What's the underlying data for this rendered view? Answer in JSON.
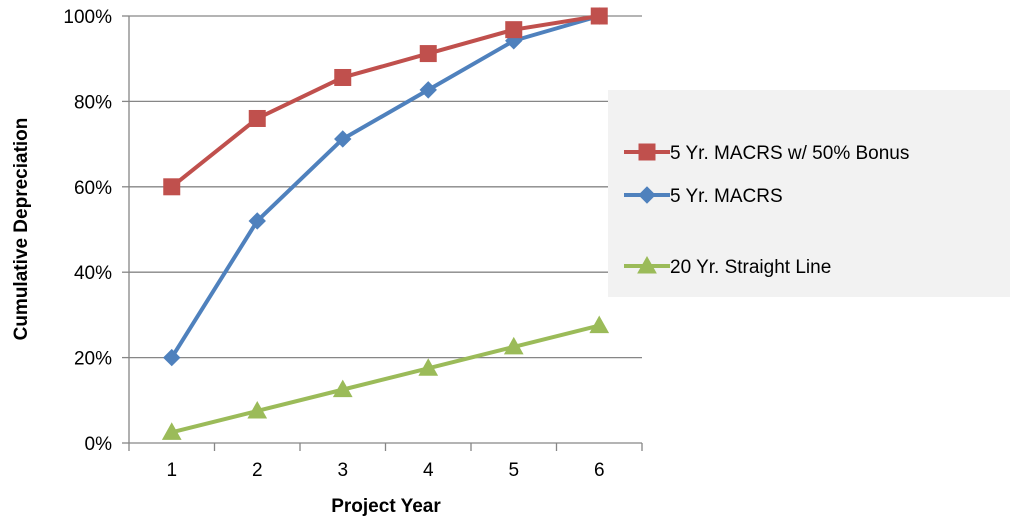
{
  "chart_data": {
    "type": "line",
    "title": "",
    "xlabel": "Project Year",
    "ylabel": "Cumulative Depreciation",
    "categories": [
      "1",
      "2",
      "3",
      "4",
      "5",
      "6"
    ],
    "ylim": [
      0,
      100
    ],
    "yticks": [
      "0%",
      "20%",
      "40%",
      "60%",
      "80%",
      "100%"
    ],
    "grid": true,
    "legend_position": "right",
    "series": [
      {
        "name": "5 Yr. MACRS w/ 50% Bonus",
        "values": [
          60,
          76,
          85.6,
          91.2,
          96.8,
          100
        ],
        "color": "#c0504d",
        "marker": "square"
      },
      {
        "name": "5 Yr. MACRS",
        "values": [
          20,
          52,
          71.2,
          82.7,
          94.2,
          100
        ],
        "color": "#4f81bd",
        "marker": "diamond"
      },
      {
        "name": "20 Yr. Straight Line",
        "values": [
          2.5,
          7.5,
          12.5,
          17.5,
          22.5,
          27.5
        ],
        "color": "#9bbb59",
        "marker": "triangle"
      }
    ]
  }
}
